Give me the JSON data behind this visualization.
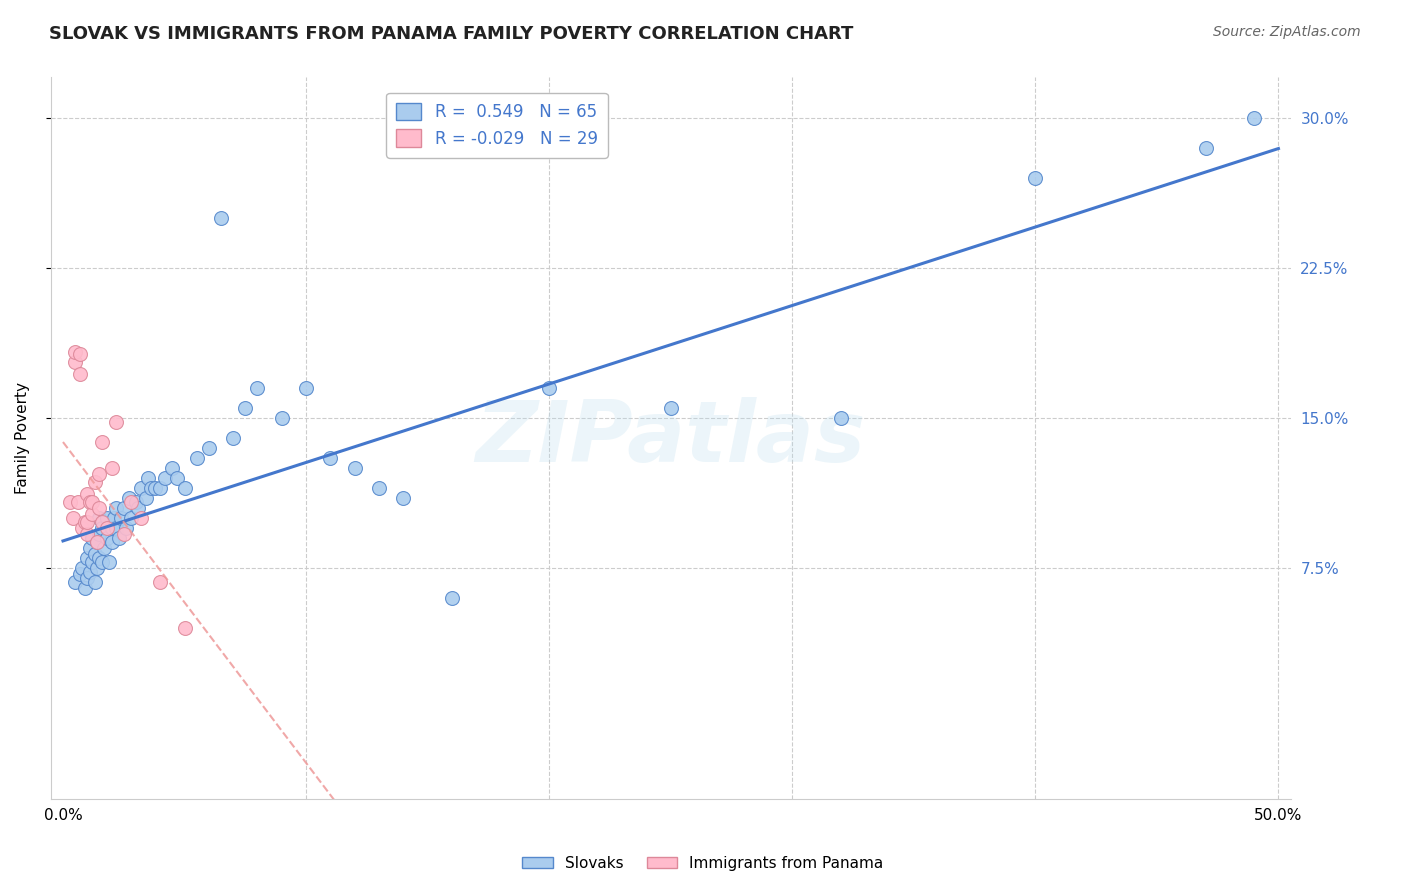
{
  "title": "SLOVAK VS IMMIGRANTS FROM PANAMA FAMILY POVERTY CORRELATION CHART",
  "source_text": "Source: ZipAtlas.com",
  "ylabel": "Family Poverty",
  "watermark": "ZIPatlas",
  "xlim_min": -0.005,
  "xlim_max": 0.505,
  "ylim_min": -0.04,
  "ylim_max": 0.32,
  "xtick_vals": [
    0.0,
    0.1,
    0.2,
    0.3,
    0.4,
    0.5
  ],
  "xtick_labels": [
    "0.0%",
    "",
    "",
    "",
    "",
    "50.0%"
  ],
  "ytick_vals": [
    0.075,
    0.15,
    0.225,
    0.3
  ],
  "ytick_labels": [
    "7.5%",
    "15.0%",
    "22.5%",
    "30.0%"
  ],
  "r1": "0.549",
  "n1": "65",
  "r2": "-0.029",
  "n2": "29",
  "blue_face": "#AACCEE",
  "blue_edge": "#5588CC",
  "pink_face": "#FFBBCC",
  "pink_edge": "#DD8899",
  "blue_line": "#4477CC",
  "pink_line": "#EE9999",
  "label1": "Slovaks",
  "label2": "Immigrants from Panama",
  "slovaks_x": [
    0.005,
    0.007,
    0.008,
    0.009,
    0.01,
    0.01,
    0.011,
    0.011,
    0.012,
    0.012,
    0.013,
    0.013,
    0.014,
    0.014,
    0.015,
    0.015,
    0.015,
    0.016,
    0.016,
    0.017,
    0.018,
    0.018,
    0.019,
    0.02,
    0.02,
    0.021,
    0.022,
    0.022,
    0.023,
    0.024,
    0.025,
    0.026,
    0.027,
    0.028,
    0.03,
    0.031,
    0.032,
    0.034,
    0.035,
    0.036,
    0.038,
    0.04,
    0.042,
    0.045,
    0.047,
    0.05,
    0.055,
    0.06,
    0.065,
    0.07,
    0.075,
    0.08,
    0.09,
    0.1,
    0.11,
    0.12,
    0.13,
    0.14,
    0.16,
    0.2,
    0.25,
    0.32,
    0.4,
    0.47,
    0.49
  ],
  "slovaks_y": [
    0.068,
    0.072,
    0.075,
    0.065,
    0.08,
    0.07,
    0.073,
    0.085,
    0.078,
    0.09,
    0.068,
    0.082,
    0.075,
    0.088,
    0.08,
    0.092,
    0.1,
    0.078,
    0.095,
    0.085,
    0.09,
    0.1,
    0.078,
    0.088,
    0.095,
    0.1,
    0.095,
    0.105,
    0.09,
    0.1,
    0.105,
    0.095,
    0.11,
    0.1,
    0.108,
    0.105,
    0.115,
    0.11,
    0.12,
    0.115,
    0.115,
    0.115,
    0.12,
    0.125,
    0.12,
    0.115,
    0.13,
    0.135,
    0.25,
    0.14,
    0.155,
    0.165,
    0.15,
    0.165,
    0.13,
    0.125,
    0.115,
    0.11,
    0.06,
    0.165,
    0.155,
    0.15,
    0.27,
    0.285,
    0.3
  ],
  "panama_x": [
    0.003,
    0.004,
    0.005,
    0.005,
    0.006,
    0.007,
    0.007,
    0.008,
    0.009,
    0.01,
    0.01,
    0.01,
    0.011,
    0.012,
    0.012,
    0.013,
    0.014,
    0.015,
    0.015,
    0.016,
    0.016,
    0.018,
    0.02,
    0.022,
    0.025,
    0.028,
    0.032,
    0.04,
    0.05
  ],
  "panama_y": [
    0.108,
    0.1,
    0.178,
    0.183,
    0.108,
    0.172,
    0.182,
    0.095,
    0.098,
    0.092,
    0.098,
    0.112,
    0.108,
    0.102,
    0.108,
    0.118,
    0.088,
    0.105,
    0.122,
    0.098,
    0.138,
    0.095,
    0.125,
    0.148,
    0.092,
    0.108,
    0.1,
    0.068,
    0.045
  ],
  "title_fontsize": 13,
  "axis_fontsize": 11,
  "tick_fontsize": 11,
  "source_fontsize": 10
}
